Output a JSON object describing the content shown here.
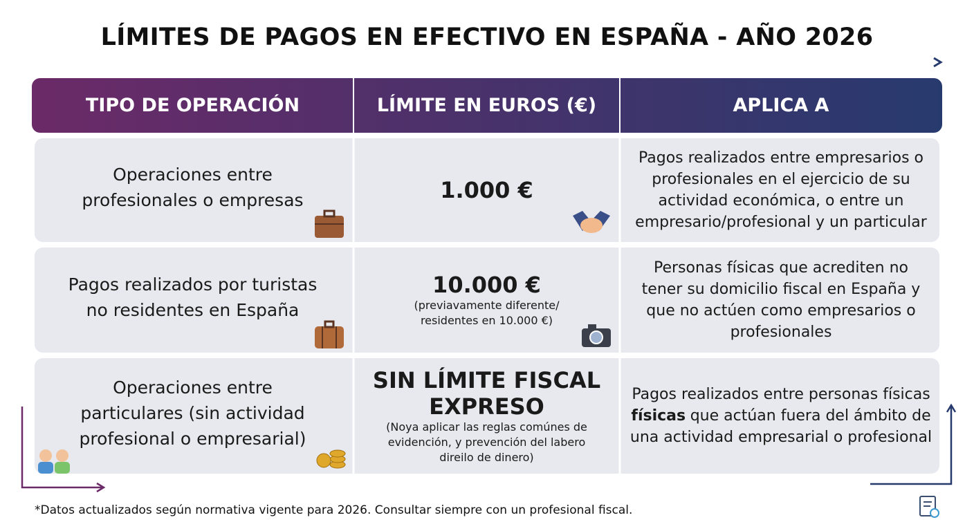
{
  "title": "LÍMITES DE PAGOS EN EFECTIVO EN ESPAÑA - AÑO 2026",
  "table": {
    "headers": [
      "TIPO DE OPERACIÓN",
      "LÍMITE EN EUROS (€)",
      "APLICA A"
    ],
    "rows": [
      {
        "operation": [
          "Operaciones entre",
          "profesionales o empresas"
        ],
        "limit": [
          "1.000 €"
        ],
        "applies": [
          "Pagos realizados entre empresarios o",
          "profesionales en el ejercicio de su",
          "actividad económica, o entre un",
          "empresario/profesional y un particular"
        ]
      },
      {
        "operation": [
          "Pagos realizados por turistas",
          "no residentes en España"
        ],
        "limit": [
          "10.000 €"
        ],
        "note": [
          "(previavamente diferente/",
          "residentes en 10.000 €)"
        ],
        "applies": [
          "Personas físicas que acrediten no",
          "tener su domicilio fiscal en España y",
          "que no actúen como empresarios o",
          "profesionales"
        ]
      },
      {
        "operation": [
          "Operaciones entre",
          "particulares (sin actividad",
          "profesional o empresarial)"
        ],
        "limit": [
          "SIN LÍMITE FISCAL",
          "EXPRESO"
        ],
        "note": [
          "(Noya aplicar las reglas comúnes de",
          "evidención, y prevención del labero",
          "direilo de dinero)"
        ],
        "applies": [
          "Pagos realizados entre personas físicas",
          [
            "físicas",
            "que actúan fuera del ámbito de"
          ],
          "una actividad empresarial o profesional"
        ]
      }
    ]
  },
  "footnote": "*Datos actualizados según normativa vigente para 2026. Consultar siempre con un profesional fiscal."
}
